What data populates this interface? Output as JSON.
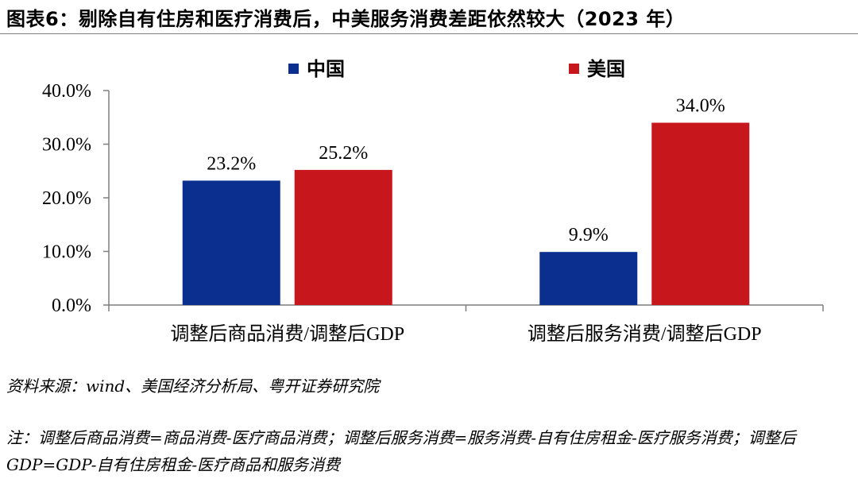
{
  "header": {
    "title": "图表6：剔除自有住房和医疗消费后，中美服务消费差距依然较大（2023 年）"
  },
  "chart_data": {
    "type": "bar",
    "categories": [
      "调整后商品消费/调整后GDP",
      "调整后服务消费/调整后GDP"
    ],
    "series": [
      {
        "name": "中国",
        "values": [
          23.2,
          9.9
        ],
        "labels": [
          "23.2%",
          "9.9%"
        ],
        "color": "#0a2f8f"
      },
      {
        "name": "美国",
        "values": [
          25.2,
          34.0
        ],
        "labels": [
          "25.2%",
          "34.0%"
        ],
        "color": "#c8161d"
      }
    ],
    "ylim": [
      0,
      40
    ],
    "yticks": [
      "0.0%",
      "10.0%",
      "20.0%",
      "30.0%",
      "40.0%"
    ],
    "grid": false,
    "legend_position": "top"
  },
  "footer": {
    "source": "资料来源：wind、美国经济分析局、粤开证券研究院",
    "note": "注：调整后商品消费=商品消费-医疗商品消费；调整后服务消费=服务消费-自有住房租金-医疗服务消费；调整后 GDP=GDP-自有住房租金-医疗商品和服务消费"
  }
}
